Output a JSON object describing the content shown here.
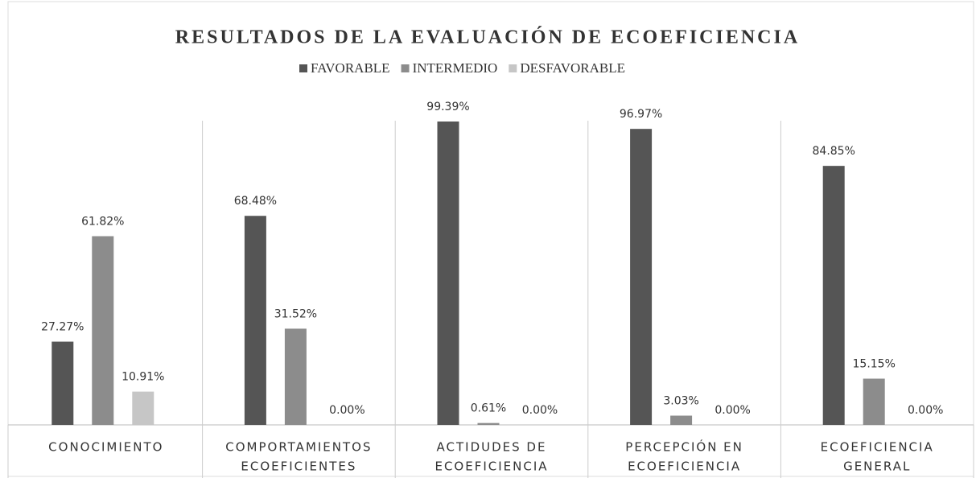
{
  "chart_data": {
    "type": "bar",
    "title": "RESULTADOS DE LA EVALUACIÓN DE ECOEFICIENCIA",
    "categories": [
      [
        "CONOCIMIENTO"
      ],
      [
        "COMPORTAMIENTOS",
        "ECOEFICIENTES"
      ],
      [
        "ACTIDUDES DE",
        "ECOEFICIENCIA"
      ],
      [
        "PERCEPCIÓN EN",
        "ECOEFICIENCIA"
      ],
      [
        "ECOEFICIENCIA",
        "GENERAL"
      ]
    ],
    "series": [
      {
        "name": "FAVORABLE",
        "color": "#555555",
        "values": [
          27.27,
          68.48,
          99.39,
          96.97,
          84.85
        ],
        "value_labels": [
          "27.27%",
          "68.48%",
          "99.39%",
          "96.97%",
          "84.85%"
        ]
      },
      {
        "name": "INTERMEDIO",
        "color": "#8c8c8c",
        "values": [
          61.82,
          31.52,
          0.61,
          3.03,
          15.15
        ],
        "value_labels": [
          "61.82%",
          "31.52%",
          "0.61%",
          "3.03%",
          "15.15%"
        ]
      },
      {
        "name": "DESFAVORABLE",
        "color": "#c6c6c6",
        "values": [
          10.91,
          0.0,
          0.0,
          0.0,
          0.0
        ],
        "value_labels": [
          "10.91%",
          "0.00%",
          "0.00%",
          "0.00%",
          "0.00%"
        ]
      }
    ],
    "legend": "top"
  }
}
